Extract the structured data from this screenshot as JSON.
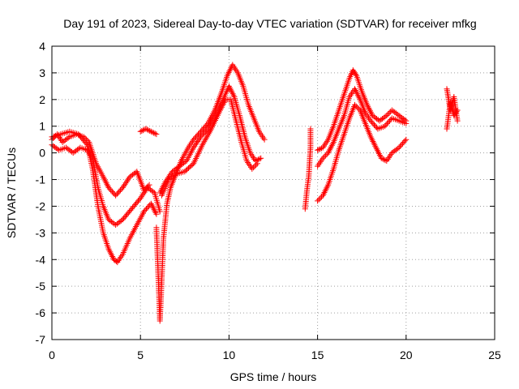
{
  "chart_data": {
    "type": "scatter",
    "title": "Day 191 of 2023, Sidereal Day-to-day VTEC variation (SDTVAR) for receiver mfkg",
    "xlabel": "GPS time / hours",
    "ylabel": "SDTVAR / TECUs",
    "xlim": [
      0,
      25
    ],
    "ylim": [
      -7,
      4
    ],
    "xticks": [
      "0",
      "5",
      "10",
      "15",
      "20",
      "25"
    ],
    "yticks": [
      "-7",
      "-6",
      "-5",
      "-4",
      "-3",
      "-2",
      "-1",
      "0",
      "1",
      "2",
      "3",
      "4"
    ],
    "grid": true,
    "marker": "+",
    "color": "#ff0000",
    "series": [
      {
        "x": [
          0.0,
          0.3,
          0.6,
          1.0,
          1.4,
          1.8,
          2.1,
          2.5,
          2.9,
          3.2,
          3.6,
          4.0,
          4.4,
          4.8,
          5.2,
          5.5
        ],
        "y": [
          0.5,
          0.7,
          0.4,
          0.6,
          0.7,
          0.6,
          0.4,
          -0.4,
          -0.9,
          -1.3,
          -1.6,
          -1.3,
          -0.9,
          -0.7,
          -1.4,
          -1.2
        ]
      },
      {
        "x": [
          0.0,
          0.4,
          0.8,
          1.2,
          1.6,
          2.0,
          2.3,
          2.6,
          2.9,
          3.2,
          3.6,
          4.0,
          4.5,
          5.0,
          5.4,
          5.8,
          6.1
        ],
        "y": [
          0.3,
          0.1,
          0.2,
          0.0,
          0.2,
          0.1,
          -0.2,
          -1.3,
          -2.0,
          -2.5,
          -2.7,
          -2.5,
          -2.1,
          -1.7,
          -1.3,
          -1.5,
          -2.2
        ]
      },
      {
        "x": [
          0.0,
          0.5,
          1.0,
          1.5,
          2.0,
          2.3,
          2.6,
          2.9,
          3.2,
          3.5,
          3.7,
          4.0,
          4.4,
          4.8,
          5.2,
          5.6,
          5.9
        ],
        "y": [
          0.6,
          0.7,
          0.8,
          0.7,
          0.3,
          -0.6,
          -2.0,
          -3.0,
          -3.6,
          -4.0,
          -4.1,
          -3.8,
          -3.2,
          -2.7,
          -2.2,
          -1.9,
          -2.3
        ]
      },
      {
        "x": [
          5.0,
          5.3,
          5.6,
          5.9
        ],
        "y": [
          0.8,
          0.9,
          0.8,
          0.7
        ]
      },
      {
        "x": [
          5.9,
          6.0,
          6.1,
          6.2,
          6.3,
          6.5,
          6.7,
          7.0,
          7.3,
          7.7,
          8.0,
          8.4,
          8.8,
          9.2,
          9.6,
          9.9,
          10.2,
          10.5,
          10.8,
          11.1,
          11.4,
          11.7,
          12.0
        ],
        "y": [
          -2.8,
          -4.5,
          -6.3,
          -4.8,
          -3.2,
          -1.9,
          -1.3,
          -0.8,
          -0.3,
          0.2,
          0.5,
          0.8,
          1.1,
          1.6,
          2.3,
          2.9,
          3.3,
          3.0,
          2.5,
          1.8,
          1.3,
          0.8,
          0.5
        ]
      },
      {
        "x": [
          6.1,
          6.4,
          6.8,
          7.2,
          7.6,
          8.0,
          8.4,
          8.8,
          9.2,
          9.6,
          10.0,
          10.3,
          10.6,
          10.9,
          11.2,
          11.5,
          11.8
        ],
        "y": [
          -1.5,
          -1.1,
          -0.7,
          -0.5,
          -0.3,
          0.2,
          0.6,
          0.9,
          1.4,
          1.9,
          2.5,
          2.1,
          1.4,
          0.6,
          0.0,
          -0.3,
          -0.2
        ]
      },
      {
        "x": [
          6.2,
          6.6,
          7.0,
          7.5,
          8.0,
          8.5,
          9.0,
          9.5,
          9.8,
          10.1,
          10.4,
          10.7,
          11.0,
          11.3,
          11.6
        ],
        "y": [
          -1.6,
          -1.0,
          -0.8,
          -0.7,
          -0.4,
          0.3,
          0.9,
          1.6,
          2.0,
          2.0,
          1.2,
          0.4,
          -0.3,
          -0.6,
          -0.4
        ]
      },
      {
        "x": [
          14.3,
          14.4,
          14.5,
          14.6,
          14.6
        ],
        "y": [
          -2.1,
          -1.4,
          -0.9,
          0.2,
          0.9
        ]
      },
      {
        "x": [
          15.0,
          15.3,
          15.6,
          15.9,
          16.2,
          16.5,
          16.8,
          17.0,
          17.2,
          17.5,
          17.8,
          18.1,
          18.5,
          18.9,
          19.2,
          19.6,
          20.0
        ],
        "y": [
          0.1,
          0.2,
          0.5,
          1.0,
          1.6,
          2.2,
          2.8,
          3.1,
          2.9,
          2.3,
          1.8,
          1.4,
          1.2,
          1.4,
          1.6,
          1.4,
          1.2
        ]
      },
      {
        "x": [
          15.0,
          15.3,
          15.6,
          15.9,
          16.2,
          16.5,
          16.8,
          17.1,
          17.4,
          17.7,
          18.0,
          18.4,
          18.8,
          19.2,
          19.6,
          20.0
        ],
        "y": [
          -0.5,
          -0.2,
          0.0,
          0.4,
          0.9,
          1.4,
          2.1,
          2.4,
          2.0,
          1.5,
          1.2,
          0.9,
          1.0,
          1.3,
          1.2,
          1.1
        ]
      },
      {
        "x": [
          15.0,
          15.3,
          15.6,
          15.9,
          16.2,
          16.5,
          16.8,
          17.1,
          17.4,
          17.7,
          18.0,
          18.3,
          18.6,
          18.9,
          19.2,
          19.6,
          20.0
        ],
        "y": [
          -1.8,
          -1.6,
          -1.2,
          -0.6,
          0.1,
          0.7,
          1.3,
          1.8,
          1.6,
          1.1,
          0.6,
          0.2,
          -0.2,
          -0.3,
          0.0,
          0.2,
          0.5
        ]
      },
      {
        "x": [
          22.3,
          22.5,
          22.7,
          22.9
        ],
        "y": [
          2.4,
          1.6,
          2.1,
          1.2
        ]
      },
      {
        "x": [
          22.3,
          22.5,
          22.7,
          22.9
        ],
        "y": [
          0.9,
          1.9,
          1.4,
          1.6
        ]
      }
    ]
  }
}
